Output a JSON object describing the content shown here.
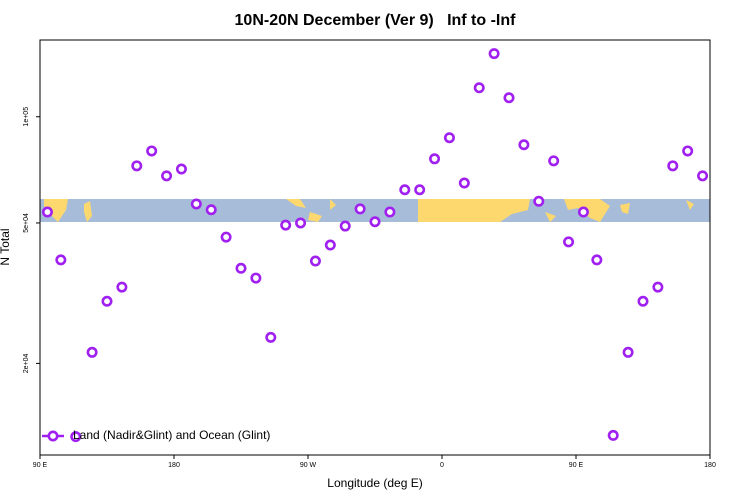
{
  "chart_data": {
    "type": "scatter",
    "title": "10N-20N December (Ver 9)   Inf to -Inf",
    "x_label": "Longitude (deg E)",
    "y_label": "N Total",
    "log_y": true,
    "legend_position": "bottomleft",
    "xlim": [
      90,
      540
    ],
    "ylim": [
      11000,
      165000
    ],
    "xticks": [
      {
        "value": 90,
        "label": "90 E"
      },
      {
        "value": 180,
        "label": "180"
      },
      {
        "value": 270,
        "label": "90 W"
      },
      {
        "value": 360,
        "label": "0"
      },
      {
        "value": 450,
        "label": "90 E"
      },
      {
        "value": 540,
        "label": "180"
      }
    ],
    "yticks": [
      {
        "value": 20000,
        "label": "2e+04"
      },
      {
        "value": 50000,
        "label": "5e+04"
      },
      {
        "value": 100000,
        "label": "1e+05"
      }
    ],
    "series": [
      {
        "name": "Land (Nadir&Glint) and Ocean (Glint)",
        "color": "#a020f0",
        "x": [
          95,
          104,
          114,
          125,
          135,
          145,
          155,
          165,
          175,
          185,
          195,
          205,
          215,
          225,
          235,
          245,
          255,
          265,
          275,
          285,
          295,
          305,
          315,
          325,
          335,
          345,
          355,
          365,
          375,
          385,
          395,
          405,
          415,
          425,
          435,
          445,
          455,
          464,
          475,
          485,
          495,
          505,
          515,
          525,
          535
        ],
        "values": [
          53700,
          39300,
          12400,
          21500,
          30000,
          32900,
          72600,
          80000,
          68000,
          71100,
          56600,
          54500,
          45600,
          37200,
          34900,
          23700,
          49300,
          50000,
          39000,
          43300,
          49000,
          54800,
          50400,
          53700,
          62100,
          62100,
          76000,
          87200,
          64900,
          120800,
          151000,
          113200,
          83300,
          57600,
          75000,
          44200,
          53700,
          39300,
          12500,
          21500,
          30000,
          32900,
          72600,
          80000,
          68000
        ]
      }
    ]
  }
}
